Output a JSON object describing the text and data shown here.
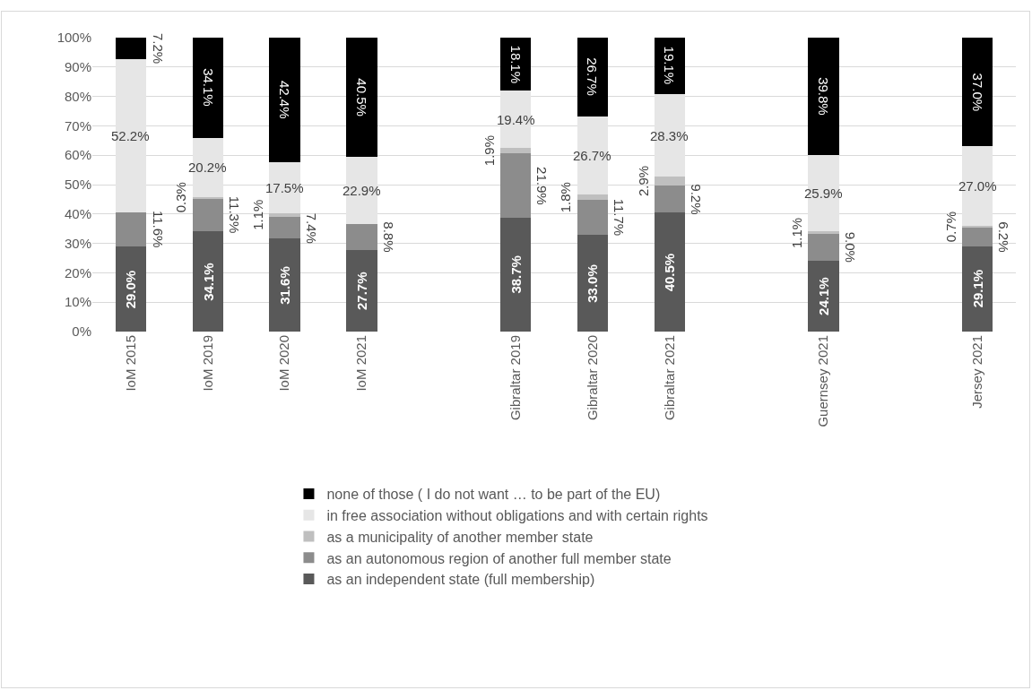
{
  "chart_data": {
    "type": "bar",
    "stacked": true,
    "categories": [
      "IoM 2015",
      "IoM 2019",
      "IoM 2020",
      "IoM 2021",
      null,
      "Gibraltar 2019",
      "Gibraltar 2020",
      "Gibraltar 2021",
      null,
      "Guernsey 2021",
      null,
      "Jersey 2021"
    ],
    "series": [
      {
        "name": "as an independent state (full membership)",
        "color": "#595959",
        "values": [
          29.0,
          34.1,
          31.6,
          27.7,
          null,
          38.7,
          33.0,
          40.5,
          null,
          24.1,
          null,
          29.1
        ],
        "value_labels": [
          "29.0%",
          "34.1%",
          "31.6%",
          "27.7%",
          null,
          "38.7%",
          "33.0%",
          "40.5%",
          null,
          "24.1%",
          null,
          "29.1%"
        ]
      },
      {
        "name": "as an autonomous region of another full member state",
        "color": "#8c8c8c",
        "values": [
          11.6,
          11.3,
          7.4,
          8.8,
          null,
          21.9,
          11.7,
          9.2,
          null,
          9.0,
          null,
          6.2
        ],
        "value_labels": [
          "11.6%",
          "11.3%",
          "7.4%",
          "8.8%",
          null,
          "21.9%",
          "11.7%",
          "9.2%",
          null,
          "9.0%",
          null,
          "6.2%"
        ]
      },
      {
        "name": "as a municipality of another member state",
        "color": "#bfbfbf",
        "values": [
          null,
          0.3,
          1.1,
          null,
          null,
          1.9,
          1.8,
          2.9,
          null,
          1.1,
          null,
          0.7
        ],
        "value_labels": [
          null,
          "0.3%",
          "1.1%",
          null,
          null,
          "1.9%",
          "1.8%",
          "2.9%",
          null,
          "1.1%",
          null,
          "0.7%"
        ]
      },
      {
        "name": "in free association without obligations and with certain rights",
        "color": "#e6e6e6",
        "values": [
          52.2,
          20.2,
          17.5,
          22.9,
          null,
          19.4,
          26.7,
          28.3,
          null,
          25.9,
          null,
          27.0
        ],
        "value_labels": [
          "52.2%",
          "20.2%",
          "17.5%",
          "22.9%",
          null,
          "19.4%",
          "26.7%",
          "28.3%",
          null,
          "25.9%",
          null,
          "27.0%"
        ]
      },
      {
        "name": "none of those ( I do not want … to be part of the EU)",
        "color": "#000000",
        "values": [
          7.2,
          34.1,
          42.4,
          40.5,
          null,
          18.1,
          26.7,
          19.1,
          null,
          39.8,
          null,
          37.0
        ],
        "value_labels": [
          "7.2%",
          "34.1%",
          "42.4%",
          "40.5%",
          null,
          "18.1%",
          "26.7%",
          "19.1%",
          null,
          "39.8%",
          null,
          "37.0%"
        ]
      }
    ],
    "ylim": [
      0,
      100
    ],
    "yticks": [
      {
        "value": 0,
        "label": "0%"
      },
      {
        "value": 10,
        "label": "10%"
      },
      {
        "value": 20,
        "label": "20%"
      },
      {
        "value": 30,
        "label": "30%"
      },
      {
        "value": 40,
        "label": "40%"
      },
      {
        "value": 50,
        "label": "50%"
      },
      {
        "value": 60,
        "label": "60%"
      },
      {
        "value": 70,
        "label": "70%"
      },
      {
        "value": 80,
        "label": "80%"
      },
      {
        "value": 90,
        "label": "90%"
      },
      {
        "value": 100,
        "label": "100%"
      }
    ],
    "grid": "y",
    "legend": "bottom"
  }
}
